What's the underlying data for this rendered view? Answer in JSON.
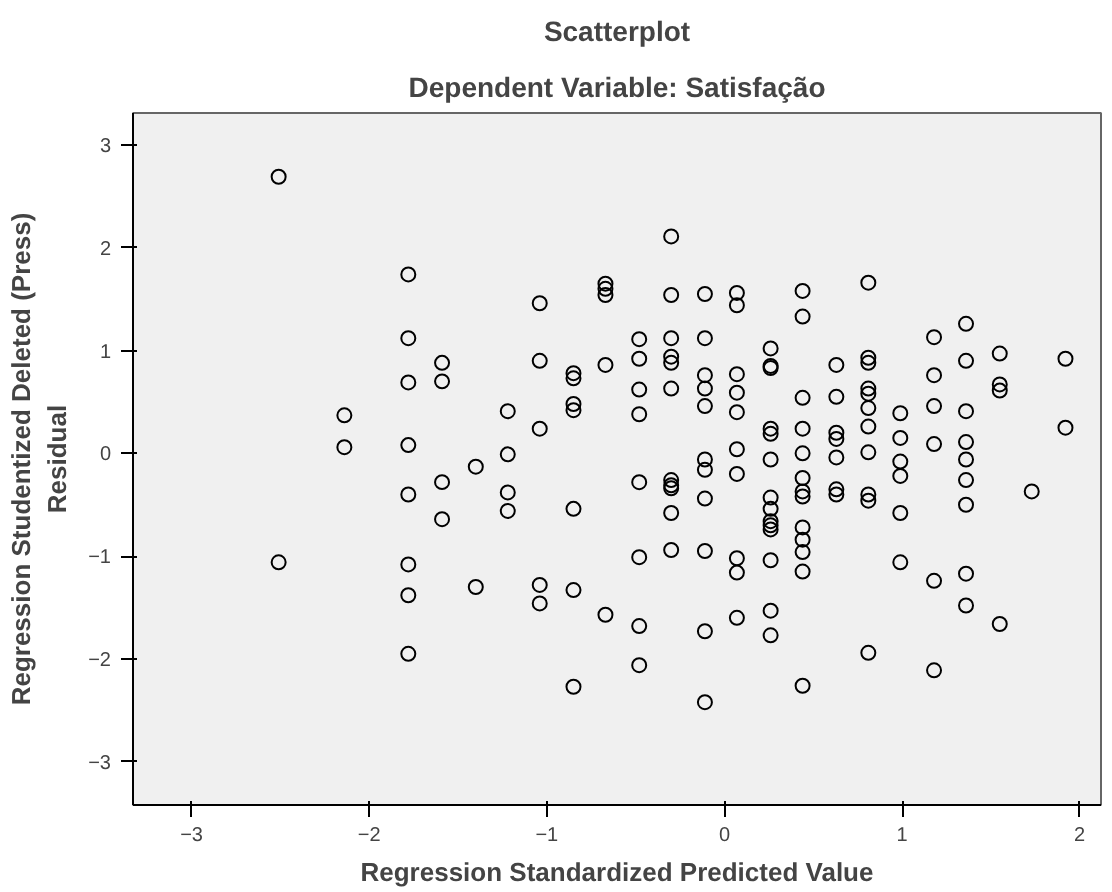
{
  "chart_data": {
    "type": "scatter",
    "title": "Scatterplot",
    "subtitle": "Dependent Variable: Satisfação",
    "xlabel": "Regression Standardized Predicted Value",
    "ylabel": "Regression Studentized Deleted (Press)\nResidual",
    "x": [
      -2.51,
      -2.51,
      -2.14,
      -2.14,
      -1.78,
      -1.78,
      -1.78,
      -1.78,
      -1.78,
      -1.78,
      -1.78,
      -1.78,
      -1.59,
      -1.59,
      -1.59,
      -1.59,
      -1.4,
      -1.4,
      -1.22,
      -1.22,
      -1.22,
      -1.22,
      -1.04,
      -1.04,
      -1.04,
      -1.04,
      -1.04,
      -0.85,
      -0.85,
      -0.85,
      -0.85,
      -0.85,
      -0.85,
      -0.85,
      -0.67,
      -0.67,
      -0.67,
      -0.67,
      -0.67,
      -0.48,
      -0.48,
      -0.48,
      -0.48,
      -0.48,
      -0.48,
      -0.48,
      -0.48,
      -0.3,
      -0.3,
      -0.3,
      -0.3,
      -0.3,
      -0.3,
      -0.3,
      -0.3,
      -0.3,
      -0.3,
      -0.3,
      -0.11,
      -0.11,
      -0.11,
      -0.11,
      -0.11,
      -0.11,
      -0.11,
      -0.11,
      -0.11,
      -0.11,
      -0.11,
      0.07,
      0.07,
      0.07,
      0.07,
      0.07,
      0.07,
      0.07,
      0.07,
      0.07,
      0.07,
      0.26,
      0.26,
      0.26,
      0.26,
      0.26,
      0.26,
      0.26,
      0.26,
      0.26,
      0.26,
      0.26,
      0.26,
      0.26,
      0.26,
      0.44,
      0.44,
      0.44,
      0.44,
      0.44,
      0.44,
      0.44,
      0.44,
      0.44,
      0.44,
      0.44,
      0.44,
      0.44,
      0.63,
      0.63,
      0.63,
      0.63,
      0.63,
      0.63,
      0.63,
      0.81,
      0.81,
      0.81,
      0.81,
      0.81,
      0.81,
      0.81,
      0.81,
      0.81,
      0.81,
      0.81,
      0.99,
      0.99,
      0.99,
      0.99,
      0.99,
      0.99,
      1.18,
      1.18,
      1.18,
      1.18,
      1.18,
      1.18,
      1.36,
      1.36,
      1.36,
      1.36,
      1.36,
      1.36,
      1.36,
      1.36,
      1.36,
      1.55,
      1.55,
      1.55,
      1.55,
      1.73,
      1.92,
      1.92
    ],
    "values": [
      2.69,
      -1.06,
      0.37,
      0.06,
      1.74,
      1.12,
      0.69,
      0.08,
      -0.4,
      -1.08,
      -1.38,
      -1.95,
      0.88,
      0.7,
      -0.28,
      -0.64,
      -0.13,
      -1.3,
      0.41,
      -0.01,
      -0.38,
      -0.56,
      1.46,
      0.9,
      0.24,
      -1.28,
      -1.46,
      0.78,
      0.73,
      0.48,
      0.42,
      -0.54,
      -1.33,
      -2.27,
      1.65,
      1.6,
      1.54,
      0.86,
      -1.57,
      1.11,
      0.92,
      0.62,
      0.38,
      -0.28,
      -1.01,
      -1.68,
      -2.06,
      2.11,
      1.54,
      1.12,
      0.94,
      0.88,
      0.63,
      -0.26,
      -0.31,
      -0.34,
      -0.58,
      -0.94,
      1.55,
      1.12,
      0.76,
      0.63,
      0.46,
      -0.06,
      -0.16,
      -0.44,
      -1.73,
      -2.42,
      -0.95,
      1.56,
      1.44,
      0.77,
      0.59,
      0.4,
      0.04,
      -0.2,
      -1.16,
      -1.6,
      -1.02,
      1.02,
      0.85,
      0.83,
      0.24,
      0.19,
      -0.06,
      -0.43,
      -0.54,
      -0.66,
      -0.7,
      -0.74,
      -1.04,
      -1.53,
      -1.77,
      1.58,
      1.33,
      0.54,
      0.24,
      0.0,
      -0.24,
      -0.37,
      -0.42,
      -0.72,
      -0.96,
      -1.15,
      -2.26,
      -0.84,
      0.86,
      0.55,
      0.2,
      0.14,
      -0.04,
      -0.35,
      -0.4,
      1.66,
      0.93,
      0.88,
      0.63,
      0.58,
      0.44,
      0.26,
      0.01,
      -0.4,
      -0.46,
      -1.94,
      0.39,
      0.15,
      -0.08,
      -0.22,
      -0.58,
      -1.06,
      1.13,
      0.76,
      0.46,
      0.09,
      -1.24,
      -2.11,
      1.26,
      0.9,
      0.41,
      0.11,
      -0.06,
      -0.26,
      -0.5,
      -1.17,
      -1.48,
      0.97,
      0.67,
      0.61,
      -1.66,
      -0.37,
      0.92,
      0.25
    ],
    "color": "#000000",
    "marker": "circle",
    "xlim": [
      -3.33,
      2.12
    ],
    "ylim": [
      -3.42,
      3.31
    ],
    "xticks": [
      -3,
      -2,
      -1,
      0,
      1,
      2
    ],
    "yticks": [
      -3,
      -2,
      -1,
      0,
      1,
      2,
      3
    ],
    "grid": false
  }
}
